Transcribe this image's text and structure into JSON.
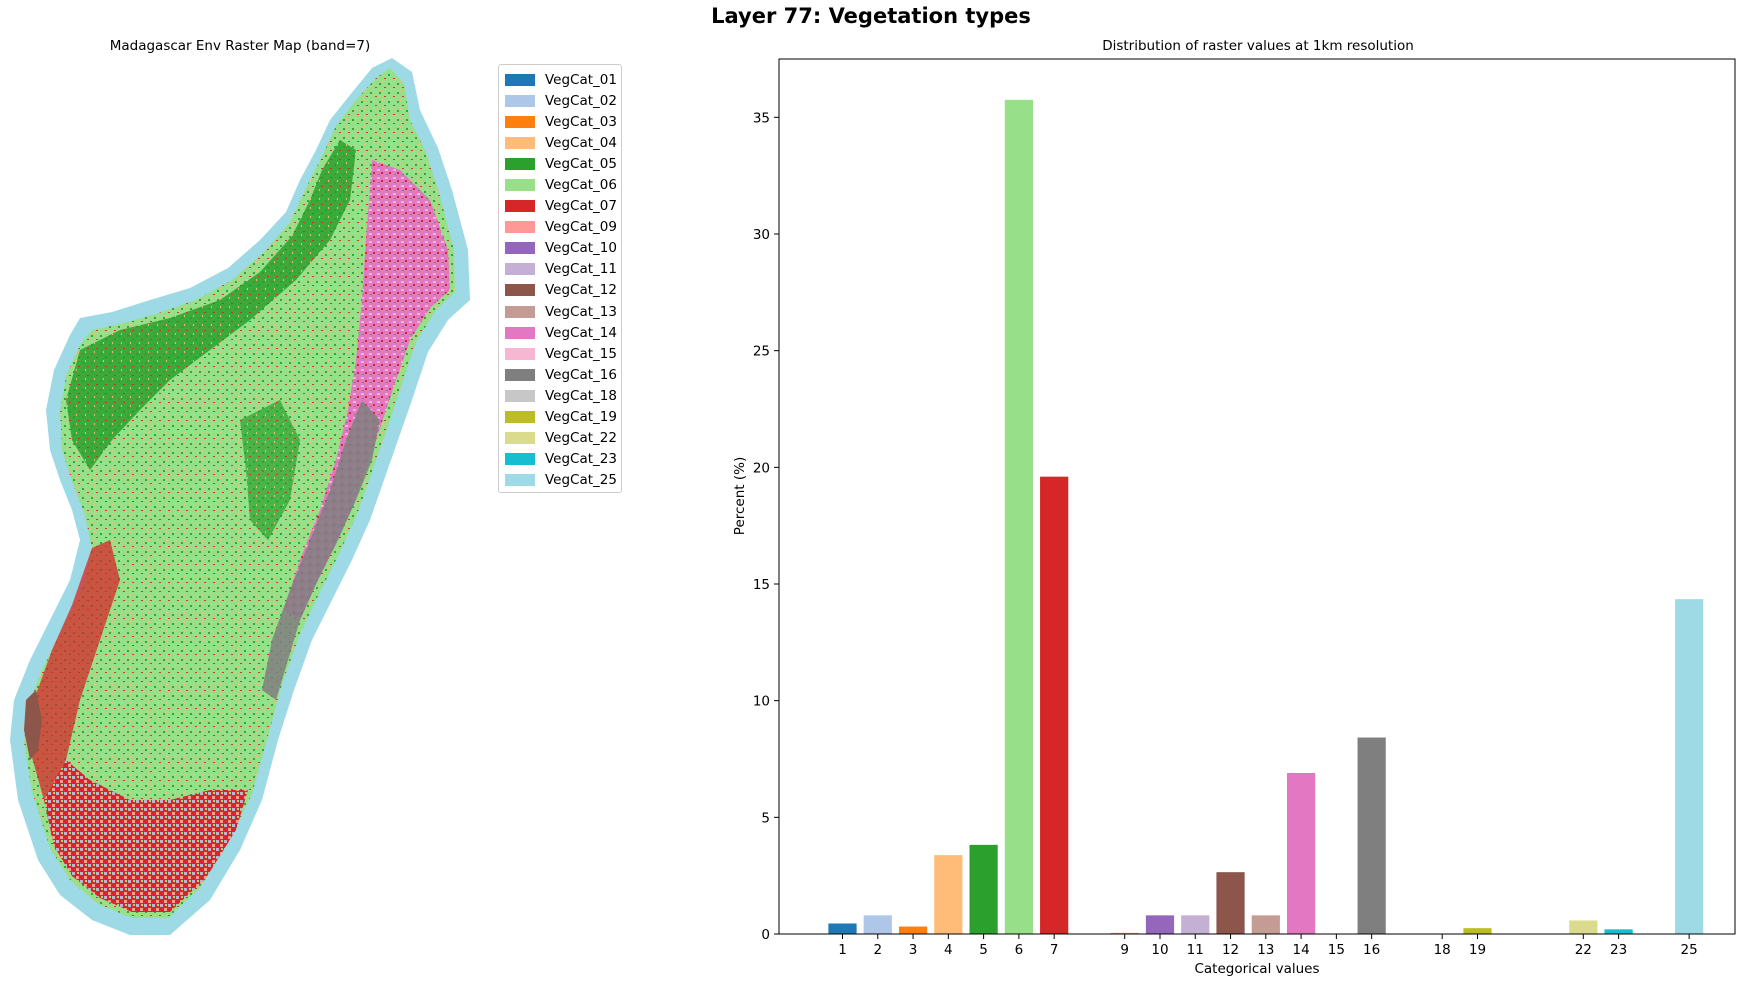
{
  "figure": {
    "suptitle": "Layer 77: Vegetation types"
  },
  "map": {
    "title": "Madagascar Env Raster Map (band=7)",
    "legend": [
      {
        "label": "VegCat_01",
        "color": "#1f77b4"
      },
      {
        "label": "VegCat_02",
        "color": "#aec7e8"
      },
      {
        "label": "VegCat_03",
        "color": "#ff7f0e"
      },
      {
        "label": "VegCat_04",
        "color": "#ffbb78"
      },
      {
        "label": "VegCat_05",
        "color": "#2ca02c"
      },
      {
        "label": "VegCat_06",
        "color": "#98df8a"
      },
      {
        "label": "VegCat_07",
        "color": "#d62728"
      },
      {
        "label": "VegCat_09",
        "color": "#ff9896"
      },
      {
        "label": "VegCat_10",
        "color": "#9467bd"
      },
      {
        "label": "VegCat_11",
        "color": "#c5b0d5"
      },
      {
        "label": "VegCat_12",
        "color": "#8c564b"
      },
      {
        "label": "VegCat_13",
        "color": "#c49c94"
      },
      {
        "label": "VegCat_14",
        "color": "#e377c2"
      },
      {
        "label": "VegCat_15",
        "color": "#f7b6d2"
      },
      {
        "label": "VegCat_16",
        "color": "#7f7f7f"
      },
      {
        "label": "VegCat_18",
        "color": "#c7c7c7"
      },
      {
        "label": "VegCat_19",
        "color": "#bcbd22"
      },
      {
        "label": "VegCat_22",
        "color": "#dbdb8d"
      },
      {
        "label": "VegCat_23",
        "color": "#17becf"
      },
      {
        "label": "VegCat_25",
        "color": "#9edae5"
      }
    ]
  },
  "chart_data": {
    "type": "bar",
    "title": "Distribution of raster values at 1km resolution",
    "xlabel": "Categorical values",
    "ylabel": "Percent (%)",
    "ylim": [
      0,
      37.5
    ],
    "xlim": [
      -0.8,
      26.3
    ],
    "yticks": [
      0,
      5,
      10,
      15,
      20,
      25,
      30,
      35
    ],
    "grid": false,
    "categories": [
      "1",
      "2",
      "3",
      "4",
      "5",
      "6",
      "7",
      "9",
      "10",
      "11",
      "12",
      "13",
      "14",
      "15",
      "16",
      "18",
      "19",
      "22",
      "23",
      "25"
    ],
    "x": [
      1,
      2,
      3,
      4,
      5,
      6,
      7,
      9,
      10,
      11,
      12,
      13,
      14,
      15,
      16,
      18,
      19,
      22,
      23,
      25
    ],
    "values": [
      0.45,
      0.8,
      0.32,
      3.38,
      3.82,
      35.75,
      19.6,
      0.05,
      0.8,
      0.8,
      2.65,
      0.8,
      6.9,
      0.02,
      8.42,
      0.01,
      0.25,
      0.58,
      0.2,
      14.35
    ],
    "colors": [
      "#1f77b4",
      "#aec7e8",
      "#ff7f0e",
      "#ffbb78",
      "#2ca02c",
      "#98df8a",
      "#d62728",
      "#ff9896",
      "#9467bd",
      "#c5b0d5",
      "#8c564b",
      "#c49c94",
      "#e377c2",
      "#f7b6d2",
      "#7f7f7f",
      "#c7c7c7",
      "#bcbd22",
      "#dbdb8d",
      "#17becf",
      "#9edae5"
    ]
  }
}
